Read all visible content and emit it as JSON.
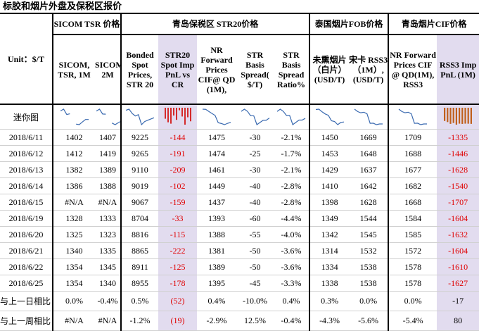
{
  "title": "标胶和烟片外盘及保税区报价",
  "table": {
    "unit": "Unit：$/T",
    "groups": [
      "SICOM TSR 价格",
      "青岛保税区 STR20价格",
      "泰国烟片FOB价格",
      "青岛烟片CIF价格"
    ],
    "columns": [
      "SICOM, TSR, 1M",
      "SICOM,TSR, 2M",
      "Bonded Spot Prices, STR 20",
      "STR20 Spot Imp PnL vs CR",
      "NR Forward Prices CIF@ QD (1M),",
      "STR Basis Spread( $/T)",
      "STR Basis Spread Ratio%",
      "未熏烟片（白片）(USD/T)",
      "宋卡 RSS3（1M）,(USD/T)",
      "NR Forward Prices CIF @ QD(1M), RSS3",
      "RSS3 Imp PnL (1M)"
    ],
    "sparkline_label": "迷你图",
    "rows": [
      [
        "2018/6/11",
        1402,
        1407,
        9225,
        -144,
        1475,
        -30,
        "-2.1%",
        1450,
        1669,
        1709,
        -1335
      ],
      [
        "2018/6/12",
        1412,
        1419,
        9265,
        -191,
        1474,
        -25,
        "-1.7%",
        1453,
        1648,
        1688,
        -1446
      ],
      [
        "2018/6/13",
        1382,
        1389,
        9110,
        -209,
        1461,
        -30,
        "-2.1%",
        1429,
        1637,
        1677,
        -1628
      ],
      [
        "2018/6/14",
        1386,
        1388,
        9019,
        -102,
        1449,
        -40,
        "-2.8%",
        1410,
        1642,
        1682,
        -1540
      ],
      [
        "2018/6/15",
        "#N/A",
        "#N/A",
        9067,
        -159,
        1437,
        -40,
        "-2.8%",
        1398,
        1628,
        1668,
        -1707
      ],
      [
        "2018/6/19",
        1328,
        1333,
        8704,
        -33,
        1393,
        -60,
        "-4.4%",
        1349,
        1544,
        1584,
        -1604
      ],
      [
        "2018/6/20",
        1325,
        1323,
        8816,
        -115,
        1388,
        -55,
        "-4.0%",
        1342,
        1545,
        1585,
        -1632
      ],
      [
        "2018/6/21",
        1340,
        1335,
        8865,
        -222,
        1381,
        -50,
        "-3.6%",
        1314,
        1532,
        1572,
        -1604
      ],
      [
        "2018/6/22",
        1354,
        1345,
        8911,
        -125,
        1389,
        -50,
        "-3.6%",
        1334,
        1538,
        1578,
        -1610
      ],
      [
        "2018/6/25",
        1354,
        1340,
        8955,
        -178,
        1395,
        -45,
        "-3.3%",
        1338,
        1538,
        1578,
        -1627
      ]
    ],
    "summary": [
      [
        "与上一日相比",
        "0.0%",
        "-0.4%",
        "0.5%",
        "(52)",
        "0.4%",
        "-10.0%",
        "0.4%",
        "0.3%",
        "0.0%",
        "0.0%",
        -17
      ],
      [
        "与上一周相比",
        "#N/A",
        "#N/A",
        "-1.2%",
        "(19)",
        "-2.9%",
        "12.5%",
        "-0.4%",
        "-4.3%",
        "-5.6%",
        "-5.4%",
        80
      ]
    ]
  }
}
